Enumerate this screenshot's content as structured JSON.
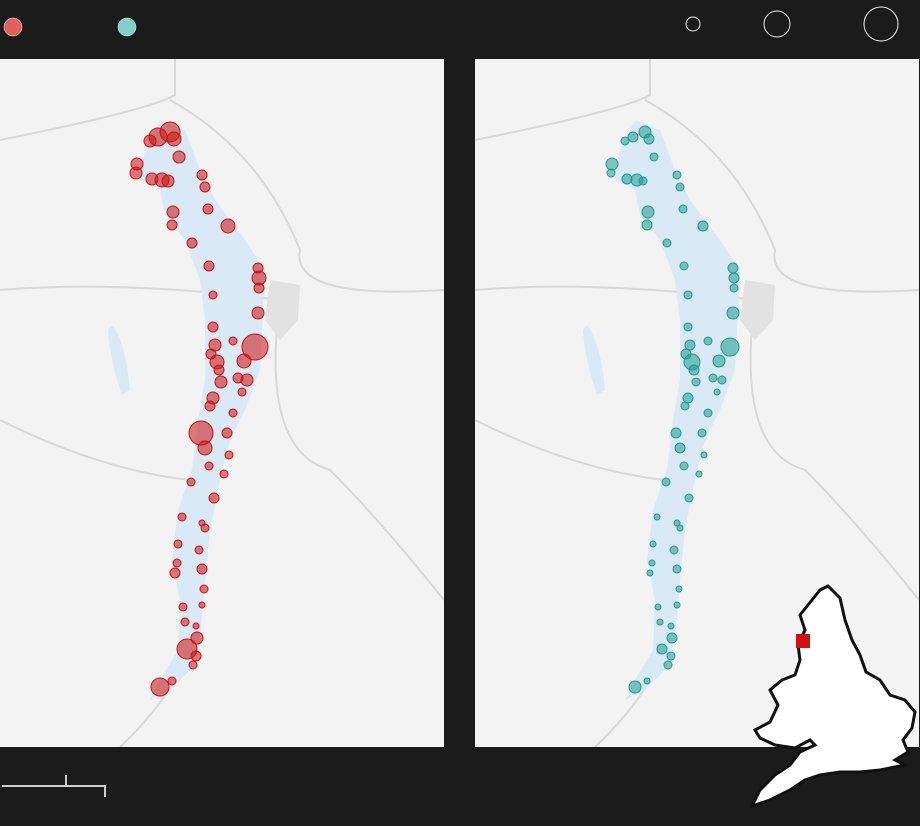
{
  "legend": {
    "colors": [
      "#e06060",
      "#80cfc8"
    ],
    "sizes": [
      7,
      13,
      17
    ]
  },
  "map_points": [
    {
      "x": 170,
      "y": 132,
      "red": 10,
      "teal": 6
    },
    {
      "x": 158,
      "y": 137,
      "red": 9,
      "teal": 5
    },
    {
      "x": 150,
      "y": 141,
      "red": 6,
      "teal": 4
    },
    {
      "x": 174,
      "y": 139,
      "red": 7,
      "teal": 5
    },
    {
      "x": 179,
      "y": 157,
      "red": 6,
      "teal": 4
    },
    {
      "x": 137,
      "y": 164,
      "red": 6,
      "teal": 6
    },
    {
      "x": 136,
      "y": 173,
      "red": 6,
      "teal": 4
    },
    {
      "x": 152,
      "y": 179,
      "red": 6,
      "teal": 5
    },
    {
      "x": 162,
      "y": 180,
      "red": 7,
      "teal": 6
    },
    {
      "x": 168,
      "y": 181,
      "red": 6,
      "teal": 4
    },
    {
      "x": 202,
      "y": 175,
      "red": 5,
      "teal": 4
    },
    {
      "x": 205,
      "y": 187,
      "red": 5,
      "teal": 4
    },
    {
      "x": 173,
      "y": 212,
      "red": 6,
      "teal": 6
    },
    {
      "x": 208,
      "y": 209,
      "red": 5,
      "teal": 4
    },
    {
      "x": 228,
      "y": 226,
      "red": 7,
      "teal": 5
    },
    {
      "x": 172,
      "y": 225,
      "red": 5,
      "teal": 5
    },
    {
      "x": 192,
      "y": 243,
      "red": 5,
      "teal": 4
    },
    {
      "x": 209,
      "y": 266,
      "red": 5,
      "teal": 4
    },
    {
      "x": 258,
      "y": 268,
      "red": 5,
      "teal": 5
    },
    {
      "x": 259,
      "y": 278,
      "red": 7,
      "teal": 5
    },
    {
      "x": 259,
      "y": 288,
      "red": 5,
      "teal": 4
    },
    {
      "x": 213,
      "y": 295,
      "red": 4,
      "teal": 4
    },
    {
      "x": 258,
      "y": 313,
      "red": 6,
      "teal": 6
    },
    {
      "x": 213,
      "y": 327,
      "red": 5,
      "teal": 4
    },
    {
      "x": 215,
      "y": 345,
      "red": 6,
      "teal": 5
    },
    {
      "x": 255,
      "y": 347,
      "red": 13,
      "teal": 9
    },
    {
      "x": 233,
      "y": 341,
      "red": 4,
      "teal": 4
    },
    {
      "x": 244,
      "y": 361,
      "red": 7,
      "teal": 6
    },
    {
      "x": 211,
      "y": 354,
      "red": 5,
      "teal": 5
    },
    {
      "x": 217,
      "y": 362,
      "red": 7,
      "teal": 8
    },
    {
      "x": 219,
      "y": 370,
      "red": 5,
      "teal": 5
    },
    {
      "x": 221,
      "y": 382,
      "red": 6,
      "teal": 4
    },
    {
      "x": 238,
      "y": 378,
      "red": 5,
      "teal": 4
    },
    {
      "x": 247,
      "y": 380,
      "red": 6,
      "teal": 4
    },
    {
      "x": 242,
      "y": 392,
      "red": 4,
      "teal": 3
    },
    {
      "x": 213,
      "y": 398,
      "red": 6,
      "teal": 5
    },
    {
      "x": 210,
      "y": 406,
      "red": 5,
      "teal": 4
    },
    {
      "x": 233,
      "y": 413,
      "red": 4,
      "teal": 4
    },
    {
      "x": 201,
      "y": 433,
      "red": 12,
      "teal": 5
    },
    {
      "x": 227,
      "y": 433,
      "red": 5,
      "teal": 4
    },
    {
      "x": 205,
      "y": 448,
      "red": 7,
      "teal": 5
    },
    {
      "x": 229,
      "y": 455,
      "red": 4,
      "teal": 3
    },
    {
      "x": 209,
      "y": 466,
      "red": 4,
      "teal": 4
    },
    {
      "x": 224,
      "y": 474,
      "red": 4,
      "teal": 3
    },
    {
      "x": 191,
      "y": 482,
      "red": 4,
      "teal": 4
    },
    {
      "x": 214,
      "y": 498,
      "red": 5,
      "teal": 4
    },
    {
      "x": 182,
      "y": 517,
      "red": 4,
      "teal": 3
    },
    {
      "x": 202,
      "y": 523,
      "red": 3,
      "teal": 3
    },
    {
      "x": 205,
      "y": 528,
      "red": 4,
      "teal": 3
    },
    {
      "x": 178,
      "y": 544,
      "red": 4,
      "teal": 3
    },
    {
      "x": 199,
      "y": 550,
      "red": 4,
      "teal": 4
    },
    {
      "x": 177,
      "y": 563,
      "red": 4,
      "teal": 3
    },
    {
      "x": 175,
      "y": 573,
      "red": 5,
      "teal": 3
    },
    {
      "x": 202,
      "y": 569,
      "red": 5,
      "teal": 4
    },
    {
      "x": 204,
      "y": 589,
      "red": 4,
      "teal": 3
    },
    {
      "x": 183,
      "y": 607,
      "red": 4,
      "teal": 3
    },
    {
      "x": 202,
      "y": 605,
      "red": 3,
      "teal": 3
    },
    {
      "x": 196,
      "y": 626,
      "red": 3,
      "teal": 3
    },
    {
      "x": 185,
      "y": 622,
      "red": 4,
      "teal": 3
    },
    {
      "x": 197,
      "y": 638,
      "red": 6,
      "teal": 5
    },
    {
      "x": 187,
      "y": 649,
      "red": 10,
      "teal": 5
    },
    {
      "x": 196,
      "y": 656,
      "red": 5,
      "teal": 4
    },
    {
      "x": 193,
      "y": 665,
      "red": 4,
      "teal": 4
    },
    {
      "x": 172,
      "y": 681,
      "red": 4,
      "teal": 3
    },
    {
      "x": 160,
      "y": 687,
      "red": 9,
      "teal": 6
    }
  ]
}
